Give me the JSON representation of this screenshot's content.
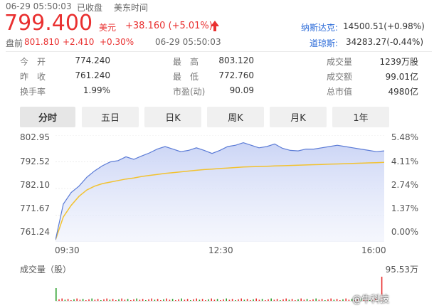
{
  "header": {
    "timestamp": "06-29 05:50:03",
    "status": "已收盘",
    "timezone": "美东时间",
    "price": "799.400",
    "currency": "美元",
    "change": "+38.160 (+5.01%)",
    "premarket_label": "盘前",
    "premarket_price": "801.810",
    "premarket_change": "+2.410",
    "premarket_pct": "+0.30%",
    "premarket_time": "06-29 05:50:03"
  },
  "indices": [
    {
      "name": "纳斯达克:",
      "value": "14500.51(+0.98%)"
    },
    {
      "name": "道琼斯:",
      "value": "34283.27(-0.44%)"
    }
  ],
  "stats": {
    "open_label": "今　开",
    "open": "774.240",
    "prev_label": "昨　收",
    "prev": "761.240",
    "turnover_rate_label": "换手率",
    "turnover_rate": "1.99%",
    "high_label": "最　高",
    "high": "803.120",
    "low_label": "最　低",
    "low": "772.760",
    "pe_label": "市盈(动)",
    "pe": "90.09",
    "volume_label": "成交量",
    "volume": "1239万股",
    "amount_label": "成交额",
    "amount": "99.01亿",
    "mcap_label": "总市值",
    "mcap": "4980亿"
  },
  "tabs": [
    "分时",
    "五日",
    "日K",
    "周K",
    "月K",
    "1年"
  ],
  "active_tab": "分时",
  "volume_panel": {
    "label": "成交量（股）",
    "max": "95.53万"
  },
  "watermark": "@牛科技",
  "colors": {
    "up": "#e93030",
    "index": "#2a6ad8",
    "price_line": "#5b7bd6",
    "avg_line": "#f2c230"
  },
  "chart_data": {
    "type": "area",
    "x_ticks": [
      "09:30",
      "12:30",
      "16:00"
    ],
    "y_ticks": [
      "802.95",
      "792.52",
      "782.10",
      "771.67",
      "761.24"
    ],
    "pct_ticks": [
      "5.48%",
      "4.11%",
      "2.74%",
      "1.37%",
      "0.00%"
    ],
    "ylim": [
      761.24,
      802.95
    ],
    "price": [
      762.0,
      776.0,
      780.5,
      783.0,
      786.5,
      789.0,
      791.0,
      792.5,
      793.0,
      794.5,
      793.5,
      794.8,
      796.0,
      797.5,
      798.5,
      797.5,
      796.5,
      797.0,
      798.0,
      797.0,
      795.8,
      797.0,
      798.5,
      799.0,
      800.0,
      799.0,
      798.0,
      798.5,
      799.5,
      797.8,
      797.0,
      796.8,
      797.5,
      797.5,
      798.0,
      798.5,
      799.0,
      798.5,
      798.0,
      797.5,
      797.0,
      796.5,
      796.8
    ],
    "avg": [
      762.0,
      771.0,
      775.5,
      779.0,
      781.5,
      783.0,
      784.0,
      784.6,
      785.2,
      785.8,
      786.2,
      786.8,
      787.2,
      787.6,
      788.0,
      788.3,
      788.6,
      788.9,
      789.2,
      789.5,
      789.7,
      789.9,
      790.1,
      790.3,
      790.5,
      790.6,
      790.7,
      790.8,
      790.9,
      791.0,
      791.1,
      791.2,
      791.3,
      791.4,
      791.5,
      791.6,
      791.7,
      791.8,
      791.9,
      792.0,
      792.1,
      792.2,
      792.3
    ]
  }
}
